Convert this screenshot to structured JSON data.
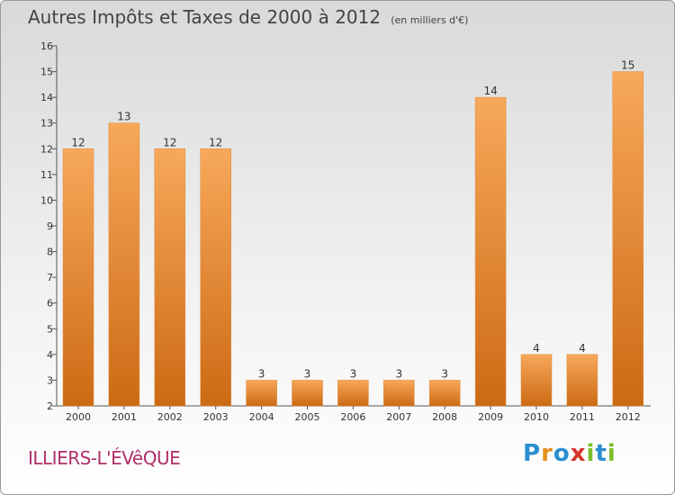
{
  "header": {
    "title": "Autres Impôts et Taxes de 2000 à 2012",
    "subtitle": "(en milliers d'€)"
  },
  "footer": {
    "commune": "ILLIERS-L'ÉVêQUE",
    "logo": "Proxiti"
  },
  "colors": {
    "bar_top": "#f7a85a",
    "bar_bottom": "#cc6a14",
    "axis": "#555555",
    "grid": "#cccccc"
  },
  "chart_data": {
    "type": "bar",
    "title": "Autres Impôts et Taxes de 2000 à 2012",
    "subtitle": "(en milliers d'€)",
    "categories": [
      "2000",
      "2001",
      "2002",
      "2003",
      "2004",
      "2005",
      "2006",
      "2007",
      "2008",
      "2009",
      "2010",
      "2011",
      "2012"
    ],
    "values": [
      12,
      13,
      12,
      12,
      3,
      3,
      3,
      3,
      3,
      14,
      4,
      4,
      15
    ],
    "ylim": [
      2,
      16
    ],
    "yticks": [
      2,
      3,
      4,
      5,
      6,
      7,
      8,
      9,
      10,
      11,
      12,
      13,
      14,
      15,
      16
    ],
    "data_labels": true,
    "grid": false,
    "legend": "none"
  }
}
